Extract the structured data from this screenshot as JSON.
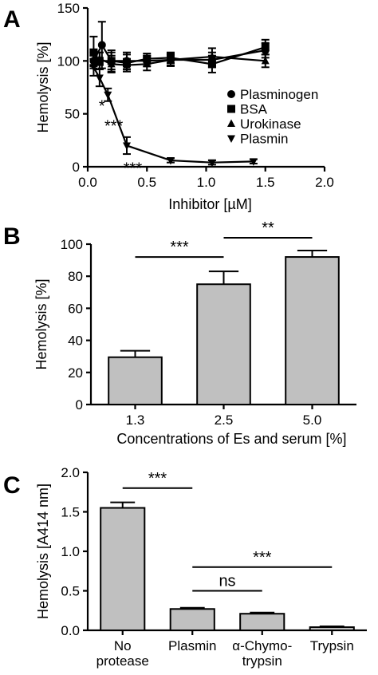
{
  "chart_data": [
    {
      "panel": "A",
      "type": "line",
      "xlabel": "Inhibitor [µM]",
      "ylabel": "Hemolysis [%]",
      "xlim": [
        0.0,
        2.0
      ],
      "ylim": [
        0,
        150
      ],
      "x_ticks": [
        "0.0",
        "0.5",
        "1.0",
        "1.5",
        "2.0"
      ],
      "y_ticks": [
        "0",
        "50",
        "100",
        "150"
      ],
      "legend_position": "right",
      "series": [
        {
          "name": "Plasminogen",
          "marker": "circle",
          "points": [
            [
              0.05,
              100,
              5
            ],
            [
              0.12,
              115,
              22
            ],
            [
              0.2,
              100,
              8
            ],
            [
              0.33,
              100,
              8
            ],
            [
              0.5,
              100,
              5
            ],
            [
              0.7,
              101,
              5
            ],
            [
              1.05,
              101,
              7
            ],
            [
              1.5,
              110,
              7
            ]
          ]
        },
        {
          "name": "BSA",
          "marker": "square",
          "points": [
            [
              0.05,
              108,
              15
            ],
            [
              0.1,
              100,
              8
            ],
            [
              0.2,
              100,
              10
            ],
            [
              0.33,
              98,
              8
            ],
            [
              0.5,
              102,
              5
            ],
            [
              0.7,
              103,
              5
            ],
            [
              1.05,
              97,
              8
            ],
            [
              1.5,
              113,
              7
            ]
          ]
        },
        {
          "name": "Urokinase",
          "marker": "triangle-up",
          "points": [
            [
              0.05,
              102,
              6
            ],
            [
              0.1,
              102,
              6
            ],
            [
              0.2,
              97,
              8
            ],
            [
              0.33,
              96,
              6
            ],
            [
              0.5,
              97,
              6
            ],
            [
              0.7,
              101,
              6
            ],
            [
              1.05,
              104,
              8
            ],
            [
              1.5,
              100,
              6
            ]
          ]
        },
        {
          "name": "Plasmin",
          "marker": "triangle-down",
          "points": [
            [
              0.05,
              94,
              8
            ],
            [
              0.1,
              84,
              8
            ],
            [
              0.17,
              68,
              6
            ],
            [
              0.33,
              20,
              8
            ],
            [
              0.7,
              6,
              2
            ],
            [
              1.05,
              4,
              2
            ],
            [
              1.4,
              5,
              2
            ]
          ]
        }
      ],
      "annotations": [
        {
          "text": "*",
          "x": 0.12,
          "y": 57
        },
        {
          "text": "***",
          "x": 0.22,
          "y": 38
        },
        {
          "text": "***",
          "x": 0.38,
          "y": -2
        }
      ]
    },
    {
      "panel": "B",
      "type": "bar",
      "xlabel": "Concentrations of Es and serum [%]",
      "ylabel": "Hemolysis [%]",
      "ylim": [
        0,
        100
      ],
      "y_ticks": [
        "0",
        "20",
        "40",
        "60",
        "80",
        "100"
      ],
      "categories": [
        "1.3",
        "2.5",
        "5.0"
      ],
      "values": [
        29.5,
        75,
        92
      ],
      "errors": [
        4,
        8,
        4
      ],
      "bar_color": "#c0c0c0",
      "significance": [
        {
          "from": 0,
          "to": 1,
          "label": "***",
          "y": 92
        },
        {
          "from": 1,
          "to": 2,
          "label": "**",
          "y": 104
        }
      ]
    },
    {
      "panel": "C",
      "type": "bar",
      "xlabel": "",
      "ylabel": "Hemolysis [A414 nm]",
      "ylim": [
        0,
        2.0
      ],
      "y_ticks": [
        "0.0",
        "0.5",
        "1.0",
        "1.5",
        "2.0"
      ],
      "categories": [
        [
          "No",
          "protease"
        ],
        [
          "Plasmin"
        ],
        [
          "α-Chymo-",
          "trypsin"
        ],
        [
          "Trypsin"
        ]
      ],
      "values": [
        1.55,
        0.27,
        0.21,
        0.04
      ],
      "errors": [
        0.07,
        0.015,
        0.015,
        0.01
      ],
      "bar_color": "#c0c0c0",
      "significance": [
        {
          "from": 0,
          "to": 1,
          "label": "***",
          "y": 1.8
        },
        {
          "from": 1,
          "to": 3,
          "label": "***",
          "y": 0.8
        },
        {
          "from": 1,
          "to": 2,
          "label": "ns",
          "y": 0.5
        }
      ]
    }
  ]
}
